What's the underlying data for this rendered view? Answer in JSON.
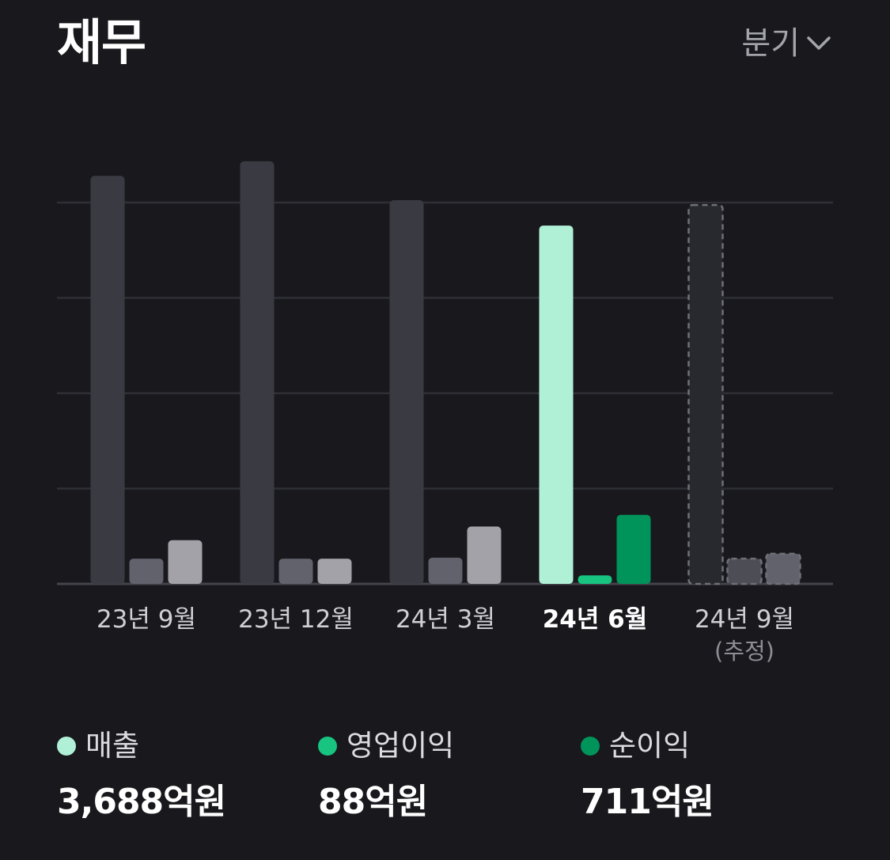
{
  "header": {
    "title": "재무",
    "period_label": "분기"
  },
  "chart_data": {
    "type": "bar",
    "categories": [
      "23년 9월",
      "23년 12월",
      "24년 3월",
      "24년 6월",
      "24년 9월"
    ],
    "category_notes": [
      "",
      "",
      "",
      "",
      "(추정)"
    ],
    "highlighted_category": 3,
    "estimated_category": 4,
    "series": [
      {
        "name": "매출",
        "values": [
          4200,
          4350,
          3950,
          3688,
          3900
        ]
      },
      {
        "name": "영업이익",
        "values": [
          260,
          260,
          270,
          88,
          260
        ]
      },
      {
        "name": "순이익",
        "values": [
          450,
          260,
          590,
          711,
          310
        ]
      }
    ],
    "ylim": [
      0,
      4300
    ],
    "gridlines": 4,
    "colors": {
      "active": [
        "#b0f0d7",
        "#17c480",
        "#00935a"
      ],
      "inactive": [
        "#3a3a43",
        "#62626c",
        "#a2a2a8"
      ],
      "estimated": [
        "#28282f",
        "#4d4d56",
        "#62626c"
      ]
    }
  },
  "legend": [
    {
      "label": "매출",
      "value": "3,688억원",
      "color": "#b0f0d7"
    },
    {
      "label": "영업이익",
      "value": "88억원",
      "color": "#17c480"
    },
    {
      "label": "순이익",
      "value": "711억원",
      "color": "#00935a"
    }
  ]
}
